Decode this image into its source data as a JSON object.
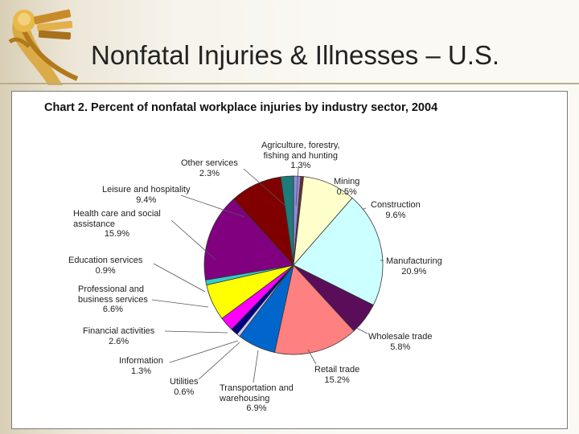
{
  "slide": {
    "title": "Nonfatal Injuries & Illnesses – U.S."
  },
  "chart_data": {
    "type": "pie",
    "title": "Chart 2.  Percent of nonfatal workplace injuries by industry sector, 2004",
    "slices": [
      {
        "label": "Agriculture, forestry, fishing and hunting",
        "label_lines": [
          "Agriculture, forestry,",
          "fishing and hunting"
        ],
        "value": 1.3,
        "value_text": "1.3%",
        "color": "#8c8cd9"
      },
      {
        "label": "Mining",
        "label_lines": [
          "Mining"
        ],
        "value": 0.5,
        "value_text": "0.5%",
        "color": "#7a2b2b"
      },
      {
        "label": "Construction",
        "label_lines": [
          "Construction"
        ],
        "value": 9.6,
        "value_text": "9.6%",
        "color": "#ffffcc"
      },
      {
        "label": "Manufacturing",
        "label_lines": [
          "Manufacturing"
        ],
        "value": 20.9,
        "value_text": "20.9%",
        "color": "#ccffff"
      },
      {
        "label": "Wholesale trade",
        "label_lines": [
          "Wholesale trade"
        ],
        "value": 5.8,
        "value_text": "5.8%",
        "color": "#5a0e5a"
      },
      {
        "label": "Retail trade",
        "label_lines": [
          "Retail trade"
        ],
        "value": 15.2,
        "value_text": "15.2%",
        "color": "#ff8080"
      },
      {
        "label": "Transportation and warehousing",
        "label_lines": [
          "Transportation and",
          "warehousing"
        ],
        "value": 6.9,
        "value_text": "6.9%",
        "color": "#0066cc"
      },
      {
        "label": "Utilities",
        "label_lines": [
          "Utilities"
        ],
        "value": 0.6,
        "value_text": "0.6%",
        "color": "#ccccff"
      },
      {
        "label": "Information",
        "label_lines": [
          "Information"
        ],
        "value": 1.3,
        "value_text": "1.3%",
        "color": "#000080"
      },
      {
        "label": "Financial activities",
        "label_lines": [
          "Financial activities"
        ],
        "value": 2.6,
        "value_text": "2.6%",
        "color": "#ff00ff"
      },
      {
        "label": "Professional and business services",
        "label_lines": [
          "Professional and",
          "business services"
        ],
        "value": 6.6,
        "value_text": "6.6%",
        "color": "#ffff00"
      },
      {
        "label": "Education services",
        "label_lines": [
          "Education services"
        ],
        "value": 0.9,
        "value_text": "0.9%",
        "color": "#33cccc"
      },
      {
        "label": "Health care and social assistance",
        "label_lines": [
          "Health care and social",
          "assistance"
        ],
        "value": 15.9,
        "value_text": "15.9%",
        "color": "#800080"
      },
      {
        "label": "Leisure and hospitality",
        "label_lines": [
          "Leisure and hospitality"
        ],
        "value": 9.4,
        "value_text": "9.4%",
        "color": "#800000"
      },
      {
        "label": "Other services",
        "label_lines": [
          "Other services"
        ],
        "value": 2.3,
        "value_text": "2.3%",
        "color": "#1f7a7a"
      }
    ],
    "start": "top",
    "direction": "clockwise",
    "legend": "none"
  }
}
